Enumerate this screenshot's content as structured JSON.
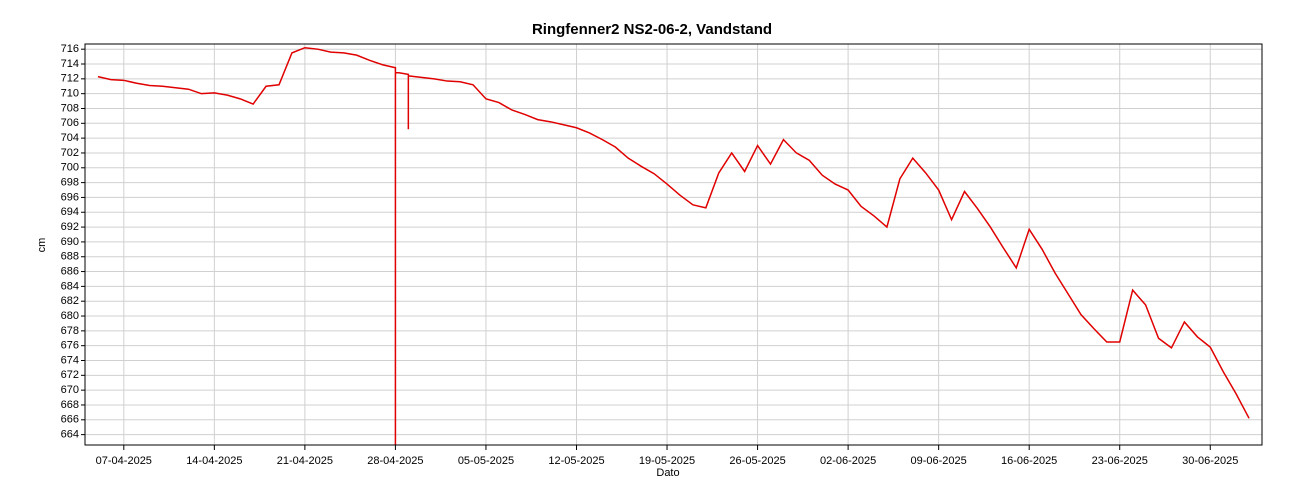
{
  "chart_data": {
    "type": "line",
    "title": "Ringfenner2 NS2-06-2, Vandstand",
    "xlabel": "Dato",
    "ylabel": "cm",
    "x": [
      "05-04-2025",
      "06-04-2025",
      "07-04-2025",
      "08-04-2025",
      "09-04-2025",
      "10-04-2025",
      "11-04-2025",
      "12-04-2025",
      "13-04-2025",
      "14-04-2025",
      "15-04-2025",
      "16-04-2025",
      "17-04-2025",
      "18-04-2025",
      "19-04-2025",
      "20-04-2025",
      "21-04-2025",
      "22-04-2025",
      "23-04-2025",
      "24-04-2025",
      "25-04-2025",
      "26-04-2025",
      "27-04-2025",
      "28-04-2025",
      "28-04-2025",
      "28-04-2025",
      "29-04-2025",
      "29-04-2025",
      "29-04-2025",
      "30-04-2025",
      "01-05-2025",
      "02-05-2025",
      "03-05-2025",
      "04-05-2025",
      "05-05-2025",
      "06-05-2025",
      "07-05-2025",
      "08-05-2025",
      "09-05-2025",
      "10-05-2025",
      "11-05-2025",
      "12-05-2025",
      "13-05-2025",
      "14-05-2025",
      "15-05-2025",
      "16-05-2025",
      "17-05-2025",
      "18-05-2025",
      "19-05-2025",
      "20-05-2025",
      "21-05-2025",
      "22-05-2025",
      "23-05-2025",
      "24-05-2025",
      "25-05-2025",
      "26-05-2025",
      "27-05-2025",
      "28-05-2025",
      "29-05-2025",
      "30-05-2025",
      "31-05-2025",
      "01-06-2025",
      "02-06-2025",
      "03-06-2025",
      "04-06-2025",
      "05-06-2025",
      "06-06-2025",
      "07-06-2025",
      "08-06-2025",
      "09-06-2025",
      "10-06-2025",
      "11-06-2025",
      "12-06-2025",
      "13-06-2025",
      "14-06-2025",
      "15-06-2025",
      "16-06-2025",
      "17-06-2025",
      "18-06-2025",
      "19-06-2025",
      "20-06-2025",
      "21-06-2025",
      "22-06-2025",
      "23-06-2025",
      "24-06-2025",
      "25-06-2025",
      "26-06-2025",
      "27-06-2025",
      "28-06-2025",
      "29-06-2025",
      "30-06-2025",
      "01-07-2025",
      "02-07-2025",
      "03-07-2025"
    ],
    "series": [
      {
        "name": "Vandstand",
        "color": "#e00000",
        "values": [
          712.3,
          711.9,
          711.8,
          711.4,
          711.1,
          711.0,
          710.8,
          710.6,
          710.0,
          710.1,
          709.8,
          709.3,
          708.6,
          711.0,
          711.2,
          715.5,
          716.2,
          716.0,
          715.6,
          715.5,
          715.2,
          714.5,
          713.9,
          713.5,
          662.6,
          712.9,
          712.6,
          705.2,
          712.4,
          712.2,
          712.0,
          711.7,
          711.6,
          711.2,
          709.3,
          708.8,
          707.8,
          707.2,
          706.5,
          706.2,
          705.8,
          705.4,
          704.7,
          703.8,
          702.8,
          701.3,
          700.2,
          699.2,
          697.8,
          696.3,
          695.0,
          694.6,
          699.3,
          702.0,
          699.5,
          703.0,
          700.5,
          703.8,
          702.0,
          701.0,
          699.0,
          697.8,
          697.0,
          694.8,
          693.5,
          692.0,
          698.5,
          701.3,
          699.3,
          697.0,
          693.0,
          696.8,
          694.5,
          692.0,
          689.2,
          686.5,
          691.7,
          689.0,
          685.8,
          683.0,
          680.2,
          678.3,
          676.5,
          676.5,
          683.5,
          681.5,
          677.0,
          675.7,
          679.2,
          677.2,
          675.8,
          672.5,
          669.5,
          666.2
        ]
      }
    ],
    "xlim": [
      "04-04-2025",
      "04-07-2025"
    ],
    "xticks": [
      "07-04-2025",
      "14-04-2025",
      "21-04-2025",
      "28-04-2025",
      "05-05-2025",
      "12-05-2025",
      "19-05-2025",
      "26-05-2025",
      "02-06-2025",
      "09-06-2025",
      "16-06-2025",
      "23-06-2025",
      "30-06-2025"
    ],
    "ylim": [
      662.6,
      716.7
    ],
    "yticks": [
      664,
      666,
      668,
      670,
      672,
      674,
      676,
      678,
      680,
      682,
      684,
      686,
      688,
      690,
      692,
      694,
      696,
      698,
      700,
      702,
      704,
      706,
      708,
      710,
      712,
      714,
      716
    ],
    "grid": true
  }
}
